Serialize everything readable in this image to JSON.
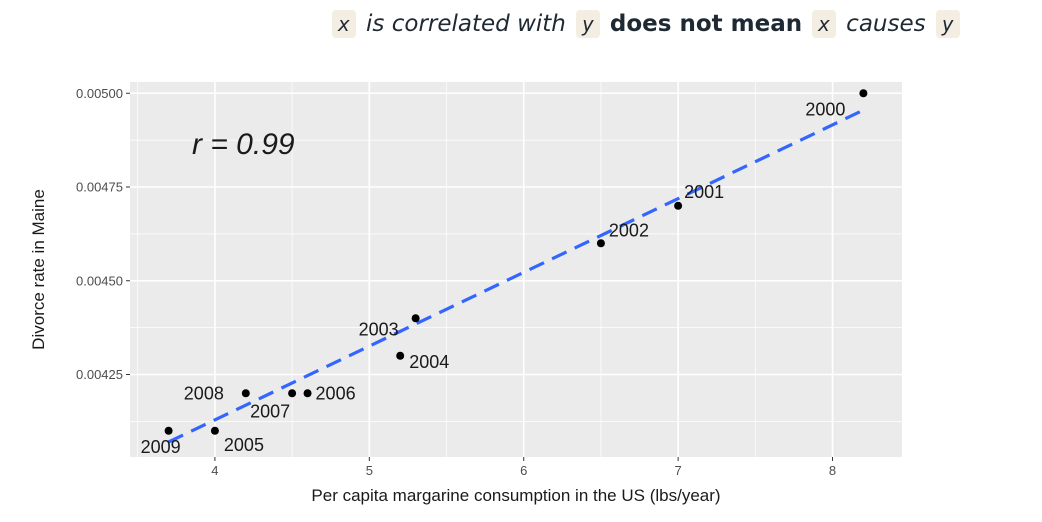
{
  "headline": {
    "var_x_1": "x",
    "phrase_1": "is correlated with",
    "var_y_1": "y",
    "phrase_bold": "does not mean",
    "var_x_2": "x",
    "phrase_2": "causes",
    "var_y_2": "y"
  },
  "colors": {
    "panel_bg": "#ebebeb",
    "grid_major": "#ffffff",
    "point": "#000000",
    "trend": "#3366ff",
    "axis_text": "#4d4d4d",
    "chip_bg": "#f3ede2"
  },
  "chart_data": {
    "type": "scatter",
    "xlabel": "Per capita margarine consumption in the US (lbs/year)",
    "ylabel": "Divorce rate in Maine",
    "annotation": "r = 0.99",
    "xlim": [
      3.45,
      8.45
    ],
    "ylim": [
      0.00403,
      0.00503
    ],
    "x_ticks": [
      4,
      5,
      6,
      7,
      8
    ],
    "x_tick_labels": [
      "4",
      "5",
      "6",
      "7",
      "8"
    ],
    "y_ticks": [
      0.00425,
      0.0045,
      0.00475,
      0.005
    ],
    "y_tick_labels": [
      "0.00425",
      "0.00450",
      "0.00475",
      "0.00500"
    ],
    "grid": true,
    "points": [
      {
        "label": "2000",
        "x": 8.2,
        "y": 0.005
      },
      {
        "label": "2001",
        "x": 7.0,
        "y": 0.0047
      },
      {
        "label": "2002",
        "x": 6.5,
        "y": 0.0046
      },
      {
        "label": "2003",
        "x": 5.3,
        "y": 0.0044
      },
      {
        "label": "2004",
        "x": 5.2,
        "y": 0.0043
      },
      {
        "label": "2005",
        "x": 4.0,
        "y": 0.0041
      },
      {
        "label": "2006",
        "x": 4.6,
        "y": 0.0042
      },
      {
        "label": "2007",
        "x": 4.5,
        "y": 0.0042
      },
      {
        "label": "2008",
        "x": 4.2,
        "y": 0.0042
      },
      {
        "label": "2009",
        "x": 3.7,
        "y": 0.0041
      }
    ],
    "trend_line": {
      "style": "dashed",
      "x": [
        3.7,
        8.2
      ],
      "y": [
        0.00407,
        0.004955
      ]
    }
  }
}
